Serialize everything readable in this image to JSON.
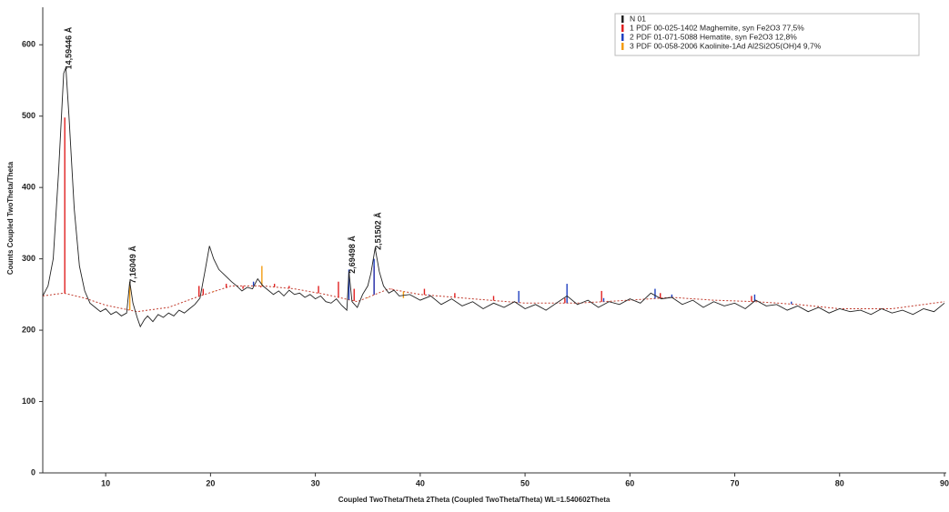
{
  "chart_data": {
    "type": "line",
    "xlabel": "Coupled TwoTheta/Theta 2Theta (Coupled TwoTheta/Theta) WL=1.540602Theta",
    "ylabel": "Counts Coupled TwoTheta/Theta",
    "xlim": [
      4,
      90
    ],
    "ylim": [
      0,
      650
    ],
    "xticks": [
      10,
      20,
      30,
      40,
      50,
      60,
      70,
      80,
      90
    ],
    "yticks": [
      0,
      100,
      200,
      300,
      400,
      500,
      600
    ],
    "legend": "upper right",
    "series": [
      {
        "name": "N 01",
        "color": "#222222",
        "x": [
          4,
          4.5,
          5,
          5.5,
          6,
          6.2,
          6.5,
          7,
          7.5,
          8,
          8.5,
          9,
          9.5,
          10,
          10.5,
          11,
          11.5,
          12,
          12.3,
          12.6,
          13,
          13.3,
          13.7,
          14,
          14.5,
          15,
          15.5,
          16,
          16.5,
          17,
          17.5,
          18,
          18.5,
          19,
          19.5,
          19.9,
          20.3,
          20.8,
          21.3,
          22,
          22.5,
          23,
          23.5,
          24,
          24.5,
          25,
          25.5,
          26,
          26.5,
          27,
          27.5,
          28,
          28.5,
          29,
          29.5,
          30,
          30.5,
          31,
          31.5,
          32,
          32.5,
          33,
          33.2,
          33.5,
          34,
          34.5,
          35,
          35.3,
          35.7,
          36.1,
          36.5,
          37,
          37.5,
          38,
          39,
          40,
          41,
          42,
          43,
          44,
          45,
          46,
          47,
          48,
          49,
          50,
          51,
          52,
          53,
          54,
          55,
          56,
          57,
          58,
          59,
          60,
          61,
          62,
          63,
          64,
          65,
          66,
          67,
          68,
          69,
          70,
          71,
          72,
          73,
          74,
          75,
          76,
          77,
          78,
          79,
          80,
          81,
          82,
          83,
          84,
          85,
          86,
          87,
          88,
          89,
          90
        ],
        "values": [
          248,
          262,
          300,
          420,
          560,
          568,
          500,
          370,
          290,
          255,
          238,
          232,
          226,
          230,
          222,
          226,
          220,
          224,
          268,
          238,
          218,
          205,
          215,
          220,
          212,
          222,
          218,
          224,
          220,
          228,
          224,
          230,
          236,
          245,
          285,
          318,
          300,
          285,
          278,
          268,
          262,
          255,
          260,
          258,
          272,
          262,
          256,
          250,
          255,
          248,
          256,
          250,
          252,
          246,
          250,
          244,
          248,
          240,
          238,
          244,
          235,
          228,
          282,
          240,
          232,
          250,
          262,
          280,
          315,
          282,
          262,
          252,
          256,
          248,
          250,
          242,
          248,
          236,
          244,
          234,
          240,
          230,
          238,
          232,
          240,
          230,
          236,
          228,
          238,
          248,
          236,
          242,
          232,
          240,
          236,
          244,
          238,
          252,
          244,
          246,
          236,
          242,
          232,
          240,
          234,
          238,
          230,
          242,
          234,
          236,
          228,
          234,
          226,
          232,
          224,
          230,
          226,
          228,
          222,
          230,
          224,
          228,
          222,
          230,
          226,
          238
        ]
      }
    ],
    "background": {
      "color": "#c0392b",
      "x": [
        4,
        6,
        8,
        10,
        13,
        16,
        19,
        22,
        25,
        28,
        31,
        34,
        37,
        40,
        45,
        50,
        55,
        60,
        64,
        68,
        72,
        76,
        80,
        85,
        90
      ],
      "values": [
        248,
        252,
        245,
        235,
        226,
        232,
        248,
        262,
        262,
        258,
        250,
        240,
        258,
        250,
        244,
        238,
        238,
        242,
        246,
        242,
        240,
        236,
        230,
        230,
        240
      ]
    },
    "phases": [
      {
        "name": "1 PDF 00-025-1402 Maghemite, syn Fe2O3 77,5%",
        "color": "#e02020",
        "x": [
          6.1,
          18.9,
          19.3,
          21.5,
          23.1,
          24.0,
          24.8,
          26.1,
          27.5,
          30.3,
          32.2,
          33.7,
          35.6,
          37.3,
          40.4,
          43.3,
          47.0,
          53.8,
          57.3,
          62.9,
          71.6
        ],
        "values": [
          498,
          262,
          258,
          265,
          258,
          262,
          260,
          265,
          262,
          262,
          268,
          258,
          290,
          258,
          258,
          252,
          248,
          245,
          255,
          252,
          248
        ]
      },
      {
        "name": "2 PDF 01-071-5088 Hematite, syn Fe2O3 12,8%",
        "color": "#2040c0",
        "x": [
          24.1,
          33.2,
          35.6,
          40.8,
          49.4,
          54.0,
          57.5,
          62.4,
          64.0,
          71.9,
          75.4
        ],
        "values": [
          268,
          285,
          300,
          250,
          255,
          265,
          245,
          258,
          250,
          250,
          240
        ]
      },
      {
        "name": "3 PDF 00-058-2006 Kaolinite-1Ad Al2Si2O5(OH)4 9,7%",
        "color": "#f39c12",
        "x": [
          12.3,
          20.3,
          24.9,
          35.0,
          38.4
        ],
        "values": [
          268,
          255,
          290,
          245,
          245
        ]
      }
    ],
    "annotations": [
      {
        "text": "14,59446 Å",
        "x": 6.2
      },
      {
        "text": "7,16049 Å",
        "x": 12.3
      },
      {
        "text": "2,69498 Å",
        "x": 33.2
      },
      {
        "text": "2,51502 Å",
        "x": 35.7
      }
    ]
  }
}
